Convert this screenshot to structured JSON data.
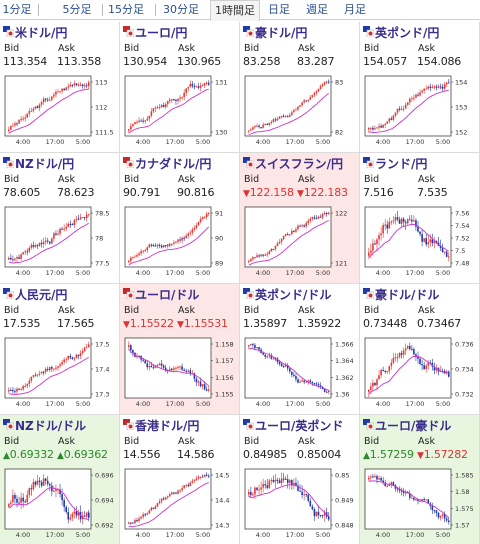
{
  "tabs": [
    {
      "label": "1分足"
    },
    {
      "label": "5分足"
    },
    {
      "label": "15分足"
    },
    {
      "label": "30分足"
    },
    {
      "label": "1時間足"
    },
    {
      "label": "日足"
    },
    {
      "label": "週足"
    },
    {
      "label": "月足"
    }
  ],
  "active_tab": "1時間足",
  "labels": {
    "bid": "Bid",
    "ask": "Ask"
  },
  "x_ticks": [
    "4:00",
    "17:00",
    "5:00"
  ],
  "colors": {
    "up_candle": "#e53935",
    "down_candle": "#1f3aa6",
    "ma_line": "#cc33cc",
    "pink_bg": "#fde6e6",
    "green_bg": "#e8f6df",
    "title": "#3a2c8c"
  },
  "tiles": [
    {
      "pair": "米ドル/円",
      "bid": "113.354",
      "ask": "113.358",
      "ticks": [
        "113",
        "112",
        "111.5"
      ],
      "bg": "white",
      "trend": "up"
    },
    {
      "pair": "ユーロ/円",
      "bid": "130.954",
      "ask": "130.965",
      "ticks": [
        "131",
        "130"
      ],
      "bg": "white",
      "trend": "up"
    },
    {
      "pair": "豪ドル/円",
      "bid": "83.258",
      "ask": "83.287",
      "ticks": [
        "83",
        "82"
      ],
      "bg": "white",
      "trend": "up"
    },
    {
      "pair": "英ポンド/円",
      "bid": "154.057",
      "ask": "154.086",
      "ticks": [
        "154",
        "153",
        "152"
      ],
      "bg": "white",
      "trend": "up"
    },
    {
      "pair": "NZドル/円",
      "bid": "78.605",
      "ask": "78.623",
      "ticks": [
        "78.5",
        "78",
        "77.5"
      ],
      "bg": "white",
      "trend": "up"
    },
    {
      "pair": "カナダドル/円",
      "bid": "90.791",
      "ask": "90.816",
      "ticks": [
        "91",
        "90",
        "89"
      ],
      "bg": "white",
      "trend": "up"
    },
    {
      "pair": "スイスフラン/円",
      "bid": "122.158",
      "ask": "122.183",
      "ticks": [
        "122",
        "121"
      ],
      "bg": "pink",
      "trend": "up",
      "dir": "down"
    },
    {
      "pair": "ランド/円",
      "bid": "7.516",
      "ask": "7.535",
      "ticks": [
        "7.56",
        "7.54",
        "7.52",
        "7.5",
        "7.48"
      ],
      "bg": "white",
      "trend": "mixed"
    },
    {
      "pair": "人民元/円",
      "bid": "17.535",
      "ask": "17.565",
      "ticks": [
        "17.5",
        "17.4",
        "17.3"
      ],
      "bg": "white",
      "trend": "up"
    },
    {
      "pair": "ユーロ/ドル",
      "bid": "1.15522",
      "ask": "1.15531",
      "ticks": [
        "1.158",
        "1.157",
        "1.156",
        "1.155"
      ],
      "bg": "pink",
      "trend": "down",
      "dir": "down"
    },
    {
      "pair": "英ポンド/ドル",
      "bid": "1.35897",
      "ask": "1.35922",
      "ticks": [
        "1.366",
        "1.364",
        "1.362",
        "1.36"
      ],
      "bg": "white",
      "trend": "down"
    },
    {
      "pair": "豪ドル/ドル",
      "bid": "0.73448",
      "ask": "0.73467",
      "ticks": [
        "0.736",
        "0.734",
        "0.732"
      ],
      "bg": "white",
      "trend": "mixed"
    },
    {
      "pair": "NZドル/ドル",
      "bid": "0.69332",
      "ask": "0.69362",
      "ticks": [
        "0.696",
        "0.694",
        "0.692"
      ],
      "bg": "green",
      "trend": "mixed",
      "dir": "up"
    },
    {
      "pair": "香港ドル/円",
      "bid": "14.556",
      "ask": "14.586",
      "ticks": [
        "14.5",
        "14.4",
        "14.3"
      ],
      "bg": "white",
      "trend": "up"
    },
    {
      "pair": "ユーロ/英ポンド",
      "bid": "0.84985",
      "ask": "0.85004",
      "ticks": [
        "0.85",
        "0.849",
        "0.848"
      ],
      "bg": "white",
      "trend": "mixed"
    },
    {
      "pair": "ユーロ/豪ドル",
      "bid": "1.57259",
      "ask": "1.57282",
      "ticks": [
        "1.585",
        "1.58",
        "1.575",
        "1.57"
      ],
      "bg": "green",
      "trend": "down",
      "dir": "mixed"
    }
  ]
}
